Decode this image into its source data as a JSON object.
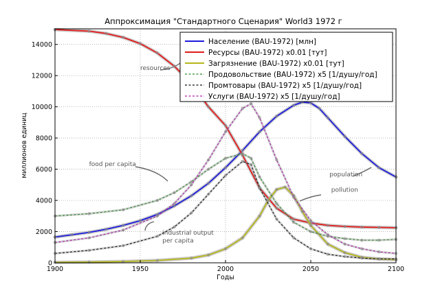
{
  "chart_data": {
    "type": "line",
    "title": "Аппроксимация \"Стандартного Сценария\" World3 1972 г",
    "xlabel": "Годы",
    "ylabel": "миллионов единиц",
    "xlim": [
      1900,
      2100
    ],
    "ylim": [
      0,
      15000
    ],
    "xticks": [
      1900,
      1950,
      2000,
      2050,
      2100
    ],
    "yticks": [
      0,
      2000,
      4000,
      6000,
      8000,
      10000,
      12000,
      14000
    ],
    "grid": true,
    "legend_position": "top-right",
    "series": [
      {
        "name": "Население (BAU-1972) [млн]",
        "color": "#1a1adb",
        "style": "solid",
        "x": [
          1900,
          1910,
          1920,
          1930,
          1940,
          1950,
          1960,
          1970,
          1980,
          1990,
          2000,
          2010,
          2020,
          2030,
          2040,
          2045,
          2050,
          2055,
          2060,
          2070,
          2080,
          2090,
          2100
        ],
        "y": [
          1650,
          1800,
          1950,
          2150,
          2400,
          2700,
          3100,
          3650,
          4300,
          5100,
          6100,
          7200,
          8400,
          9400,
          10100,
          10300,
          10250,
          9900,
          9300,
          8100,
          7000,
          6100,
          5500
        ]
      },
      {
        "name": "Ресурсы (BAU-1972) x0.01 [тут]",
        "color": "#e01a1a",
        "style": "solid",
        "x": [
          1900,
          1920,
          1930,
          1940,
          1950,
          1960,
          1970,
          1980,
          1990,
          2000,
          2010,
          2020,
          2030,
          2040,
          2050,
          2060,
          2070,
          2080,
          2090,
          2100
        ],
        "y": [
          14950,
          14850,
          14700,
          14450,
          14050,
          13450,
          12600,
          11500,
          10000,
          8800,
          6900,
          4800,
          3500,
          2800,
          2550,
          2400,
          2330,
          2290,
          2270,
          2250
        ]
      },
      {
        "name": "Загрязнение (BAU-1972) x0.01 [тут]",
        "color": "#b5b51a",
        "style": "solid",
        "x": [
          1900,
          1920,
          1940,
          1960,
          1980,
          1990,
          2000,
          2010,
          2020,
          2025,
          2030,
          2035,
          2040,
          2045,
          2050,
          2060,
          2070,
          2080,
          2090,
          2100
        ],
        "y": [
          30,
          50,
          80,
          150,
          300,
          500,
          900,
          1600,
          3000,
          4000,
          4700,
          4850,
          4300,
          3300,
          2400,
          1200,
          650,
          350,
          250,
          200
        ]
      },
      {
        "name": "Продовольствие (BAU-1972) x5 [1/душу/год]",
        "color": "#2e8b2e",
        "style": "dashed",
        "x": [
          1900,
          1920,
          1940,
          1960,
          1970,
          1980,
          1990,
          2000,
          2010,
          2015,
          2020,
          2030,
          2040,
          2050,
          2060,
          2070,
          2080,
          2090,
          2100
        ],
        "y": [
          3000,
          3150,
          3400,
          4000,
          4500,
          5200,
          6000,
          6700,
          7000,
          6700,
          5500,
          3800,
          2600,
          2000,
          1700,
          1550,
          1450,
          1450,
          1500
        ]
      },
      {
        "name": "Промтовары (BAU-1972) x5 [1/душу/год]",
        "color": "#111111",
        "style": "dashed",
        "x": [
          1900,
          1920,
          1940,
          1960,
          1970,
          1980,
          1990,
          2000,
          2010,
          2015,
          2020,
          2030,
          2040,
          2050,
          2060,
          2070,
          2080,
          2090,
          2100
        ],
        "y": [
          600,
          800,
          1100,
          1700,
          2300,
          3200,
          4400,
          5600,
          6500,
          6300,
          4800,
          2800,
          1600,
          900,
          550,
          400,
          300,
          250,
          250
        ]
      },
      {
        "name": "Услуги (BAU-1972) x5 [1/душу/год]",
        "color": "#b01ab0",
        "style": "dashed",
        "x": [
          1900,
          1920,
          1940,
          1960,
          1970,
          1980,
          1990,
          2000,
          2010,
          2015,
          2020,
          2030,
          2040,
          2050,
          2060,
          2070,
          2080,
          2090,
          2100
        ],
        "y": [
          1300,
          1600,
          2100,
          3000,
          3800,
          5000,
          6600,
          8400,
          9900,
          10200,
          9300,
          6600,
          4200,
          2700,
          1800,
          1200,
          900,
          700,
          600
        ]
      }
    ],
    "annotations": [
      {
        "text": "resources",
        "x": 1950,
        "y": 12350
      },
      {
        "text": "food per capita",
        "x": 1920,
        "y": 6200
      },
      {
        "text": "industrial output",
        "x": 1963,
        "y": 1800
      },
      {
        "text": "per capita",
        "x": 1963,
        "y": 1300
      },
      {
        "text": "population",
        "x": 2061,
        "y": 5550
      },
      {
        "text": "pollution",
        "x": 2062,
        "y": 4550
      }
    ]
  }
}
